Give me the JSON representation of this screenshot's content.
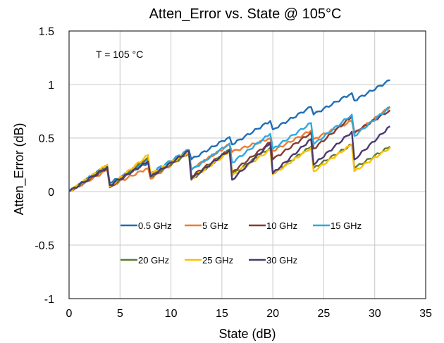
{
  "chart_data": {
    "type": "line",
    "title": "Atten_Error vs. State @ 105°C",
    "xlabel": "State (dB)",
    "ylabel": "Atten_Error (dB)",
    "xlim": [
      0,
      35
    ],
    "ylim": [
      -1,
      1.5
    ],
    "xticks": [
      0,
      5,
      10,
      15,
      20,
      25,
      30,
      35
    ],
    "yticks": [
      -1,
      -0.5,
      0,
      0.5,
      1,
      1.5
    ],
    "xtick_labels": [
      "0",
      "5",
      "10",
      "15",
      "20",
      "25",
      "30",
      "35"
    ],
    "ytick_labels": [
      "-1",
      "-0.5",
      "0",
      "0.5",
      "1",
      "1.5"
    ],
    "grid": true,
    "annotation": "T = 105 °C",
    "legend_position": "inside-lower",
    "series": [
      {
        "name": "0.5 GHz",
        "color": "#1f6eb6",
        "anchors": [
          [
            0,
            0
          ],
          [
            3.75,
            0.22
          ],
          [
            4,
            0.08
          ],
          [
            7.75,
            0.27
          ],
          [
            8,
            0.17
          ],
          [
            11.75,
            0.39
          ],
          [
            12,
            0.3
          ],
          [
            15.75,
            0.51
          ],
          [
            16,
            0.44
          ],
          [
            19.75,
            0.66
          ],
          [
            20,
            0.58
          ],
          [
            23.75,
            0.79
          ],
          [
            24,
            0.72
          ],
          [
            27.75,
            0.92
          ],
          [
            28,
            0.85
          ],
          [
            31.5,
            1.04
          ]
        ]
      },
      {
        "name": "5 GHz",
        "color": "#ed7d31",
        "anchors": [
          [
            0,
            0
          ],
          [
            3.75,
            0.2
          ],
          [
            4,
            0.05
          ],
          [
            7.75,
            0.22
          ],
          [
            8,
            0.12
          ],
          [
            11.75,
            0.36
          ],
          [
            12,
            0.21
          ],
          [
            15.75,
            0.44
          ],
          [
            16,
            0.37
          ],
          [
            19.75,
            0.5
          ],
          [
            20,
            0.38
          ],
          [
            23.75,
            0.57
          ],
          [
            24,
            0.49
          ],
          [
            27.75,
            0.66
          ],
          [
            28,
            0.54
          ],
          [
            31.5,
            0.79
          ]
        ]
      },
      {
        "name": "10 GHz",
        "color": "#843c33",
        "anchors": [
          [
            0,
            0
          ],
          [
            3.75,
            0.22
          ],
          [
            4,
            0.04
          ],
          [
            7.75,
            0.3
          ],
          [
            8,
            0.14
          ],
          [
            11.75,
            0.37
          ],
          [
            12,
            0.14
          ],
          [
            15.75,
            0.39
          ],
          [
            16,
            0.18
          ],
          [
            19.75,
            0.46
          ],
          [
            20,
            0.3
          ],
          [
            23.75,
            0.55
          ],
          [
            24,
            0.4
          ],
          [
            27.75,
            0.7
          ],
          [
            28,
            0.55
          ],
          [
            31.5,
            0.76
          ]
        ]
      },
      {
        "name": "15 GHz",
        "color": "#2fa9e0",
        "anchors": [
          [
            0,
            0
          ],
          [
            3.75,
            0.25
          ],
          [
            4,
            0.06
          ],
          [
            7.75,
            0.31
          ],
          [
            8,
            0.17
          ],
          [
            11.75,
            0.39
          ],
          [
            12,
            0.2
          ],
          [
            15.75,
            0.45
          ],
          [
            16,
            0.27
          ],
          [
            19.75,
            0.54
          ],
          [
            20,
            0.4
          ],
          [
            23.75,
            0.64
          ],
          [
            24,
            0.44
          ],
          [
            27.75,
            0.72
          ],
          [
            28,
            0.52
          ],
          [
            31.5,
            0.79
          ]
        ]
      },
      {
        "name": "20 GHz",
        "color": "#5a7d34",
        "anchors": [
          [
            0,
            0
          ],
          [
            3.75,
            0.24
          ],
          [
            4,
            0.04
          ],
          [
            7.75,
            0.32
          ],
          [
            8,
            0.14
          ],
          [
            11.75,
            0.36
          ],
          [
            12,
            0.11
          ],
          [
            15.75,
            0.39
          ],
          [
            16,
            0.16
          ],
          [
            19.75,
            0.41
          ],
          [
            20,
            0.17
          ],
          [
            23.75,
            0.42
          ],
          [
            24,
            0.22
          ],
          [
            27.75,
            0.44
          ],
          [
            28,
            0.22
          ],
          [
            31.5,
            0.42
          ]
        ]
      },
      {
        "name": "25 GHz",
        "color": "#ffc000",
        "anchors": [
          [
            0,
            0
          ],
          [
            3.75,
            0.25
          ],
          [
            4,
            0.05
          ],
          [
            7.75,
            0.34
          ],
          [
            8,
            0.16
          ],
          [
            11.75,
            0.37
          ],
          [
            12,
            0.12
          ],
          [
            15.75,
            0.37
          ],
          [
            16,
            0.15
          ],
          [
            19.75,
            0.39
          ],
          [
            20,
            0.16
          ],
          [
            23.75,
            0.41
          ],
          [
            24,
            0.19
          ],
          [
            27.75,
            0.44
          ],
          [
            28,
            0.19
          ],
          [
            31.5,
            0.41
          ]
        ]
      },
      {
        "name": "30 GHz",
        "color": "#4b3a6f",
        "anchors": [
          [
            0,
            0
          ],
          [
            3.75,
            0.23
          ],
          [
            4,
            0.06
          ],
          [
            7.75,
            0.28
          ],
          [
            8,
            0.14
          ],
          [
            11.75,
            0.38
          ],
          [
            12,
            0.12
          ],
          [
            15.75,
            0.39
          ],
          [
            16,
            0.11
          ],
          [
            19.75,
            0.45
          ],
          [
            20,
            0.17
          ],
          [
            23.75,
            0.49
          ],
          [
            24,
            0.25
          ],
          [
            27.75,
            0.56
          ],
          [
            28,
            0.3
          ],
          [
            31.5,
            0.61
          ]
        ]
      }
    ]
  }
}
